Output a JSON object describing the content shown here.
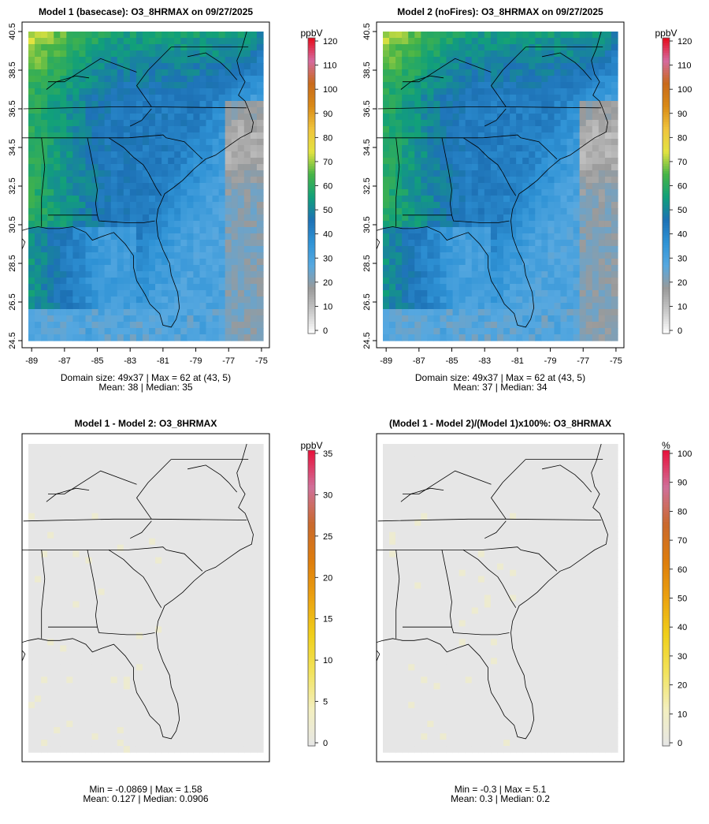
{
  "chart_data": [
    {
      "type": "heatmap",
      "title": "Model 1 (basecase): O3_8HRMAX on 09/27/2025",
      "colorbar_unit": "ppbV",
      "colorbar_ticks": [
        "0",
        "10",
        "20",
        "30",
        "40",
        "50",
        "60",
        "70",
        "80",
        "90",
        "100",
        "110",
        "120"
      ],
      "x_ticks": [
        "-89",
        "-87",
        "-85",
        "-83",
        "-81",
        "-79",
        "-77",
        "-75"
      ],
      "y_ticks": [
        "24.5",
        "26.5",
        "28.5",
        "30.5",
        "32.5",
        "34.5",
        "36.5",
        "38.5",
        "40.5"
      ],
      "stats_line1": "Domain size: 49x37 | Max = 62 at (43, 5)",
      "stats_line2": "Mean: 38 |  Median: 35",
      "max": 62,
      "mean": 38,
      "median": 35
    },
    {
      "type": "heatmap",
      "title": "Model 2 (noFires): O3_8HRMAX on 09/27/2025",
      "colorbar_unit": "ppbV",
      "colorbar_ticks": [
        "0",
        "10",
        "20",
        "30",
        "40",
        "50",
        "60",
        "70",
        "80",
        "90",
        "100",
        "110",
        "120"
      ],
      "x_ticks": [
        "-89",
        "-87",
        "-85",
        "-83",
        "-81",
        "-79",
        "-77",
        "-75"
      ],
      "y_ticks": [
        "24.5",
        "26.5",
        "28.5",
        "30.5",
        "32.5",
        "34.5",
        "36.5",
        "38.5",
        "40.5"
      ],
      "stats_line1": "Domain size: 49x37 | Max = 62 at (43, 5)",
      "stats_line2": "Mean: 37 |  Median: 34",
      "max": 62,
      "mean": 37,
      "median": 34
    },
    {
      "type": "heatmap",
      "title": "Model 1 - Model 2: O3_8HRMAX",
      "colorbar_unit": "ppbV",
      "colorbar_ticks": [
        "0",
        "5",
        "10",
        "15",
        "20",
        "25",
        "30",
        "35"
      ],
      "stats_line1": "Min = -0.0869 | Max = 1.58",
      "stats_line2": "Mean: 0.127 |  Median: 0.0906",
      "min": -0.0869,
      "max": 1.58,
      "mean": 0.127,
      "median": 0.0906
    },
    {
      "type": "heatmap",
      "title": "(Model 1 - Model 2)/(Model 1)x100%: O3_8HRMAX",
      "colorbar_unit": "%",
      "colorbar_ticks": [
        "0",
        "10",
        "20",
        "30",
        "40",
        "50",
        "60",
        "70",
        "80",
        "90",
        "100"
      ],
      "stats_line1": "Min = -0.3 | Max = 5.1",
      "stats_line2": "Mean: 0.3 |  Median: 0.2",
      "min": -0.3,
      "max": 5.1,
      "mean": 0.3,
      "median": 0.2
    }
  ],
  "palettes": {
    "ozone": [
      "#ffffff",
      "#c8c8c8",
      "#9a9a9a",
      "#56a8e0",
      "#2f93d6",
      "#1d71b5",
      "#11a07a",
      "#46b447",
      "#e3e340",
      "#f0c43c",
      "#d98a16",
      "#c86a1a",
      "#d56aa0",
      "#e60a1a"
    ],
    "diff": [
      "#e6e6e6",
      "#f3efbf",
      "#f2e35c",
      "#f0cf1a",
      "#eba210",
      "#de7d0c",
      "#c9692c",
      "#d0709a",
      "#e8103a"
    ]
  }
}
